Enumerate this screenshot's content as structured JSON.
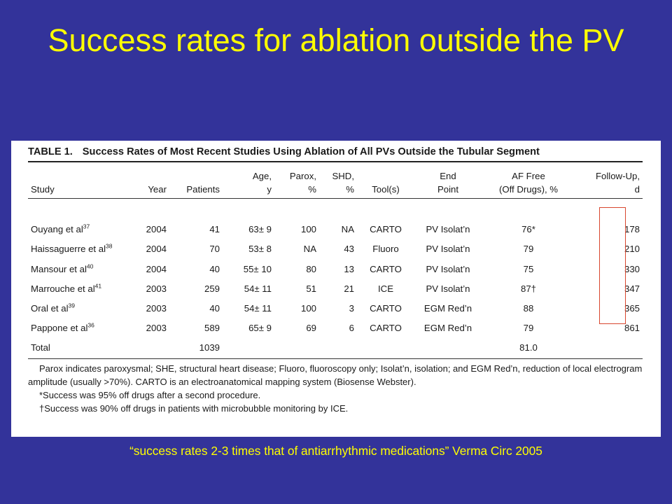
{
  "slide": {
    "title": "Success rates for ablation outside the PV",
    "caption": "“success rates 2-3 times that of antiarrhythmic medications” Verma Circ 2005",
    "colors": {
      "background": "#33339a",
      "title_text": "#ffff00",
      "highlight_box": "#d8462e"
    }
  },
  "table": {
    "label": "TABLE 1.",
    "title": "Success Rates of Most Recent Studies Using Ablation of All PVs Outside the Tubular Segment",
    "headers": {
      "study": [
        "Study"
      ],
      "year": [
        "Year"
      ],
      "patients": [
        "Patients"
      ],
      "age": [
        "Age,",
        "y"
      ],
      "parox": [
        "Parox,",
        "%"
      ],
      "shd": [
        "SHD,",
        "%"
      ],
      "tools": [
        "Tool(s)"
      ],
      "endpoint": [
        "End",
        "Point"
      ],
      "af_free": [
        "AF Free",
        "(Off Drugs), %"
      ],
      "followup": [
        "Follow-Up,",
        "d"
      ]
    },
    "rows": [
      {
        "study": "Ouyang et al",
        "ref": "37",
        "year": "2004",
        "patients": "41",
        "age": "63± 9",
        "parox": "100",
        "shd": "NA",
        "tools": "CARTO",
        "endpoint": "PV Isolat’n",
        "af_free": "76*",
        "followup": "178"
      },
      {
        "study": "Haissaguerre et al",
        "ref": "38",
        "year": "2004",
        "patients": "70",
        "age": "53± 8",
        "parox": "NA",
        "shd": "43",
        "tools": "Fluoro",
        "endpoint": "PV Isolat’n",
        "af_free": "79",
        "followup": "210"
      },
      {
        "study": "Mansour et al",
        "ref": "40",
        "year": "2004",
        "patients": "40",
        "age": "55± 10",
        "parox": "80",
        "shd": "13",
        "tools": "CARTO",
        "endpoint": "PV Isolat’n",
        "af_free": "75",
        "followup": "330"
      },
      {
        "study": "Marrouche et al",
        "ref": "41",
        "year": "2003",
        "patients": "259",
        "age": "54± 11",
        "parox": "51",
        "shd": "21",
        "tools": "ICE",
        "endpoint": "PV Isolat’n",
        "af_free": "87†",
        "followup": "347"
      },
      {
        "study": "Oral et al",
        "ref": "39",
        "year": "2003",
        "patients": "40",
        "age": "54± 11",
        "parox": "100",
        "shd": "3",
        "tools": "CARTO",
        "endpoint": "EGM Red’n",
        "af_free": "88",
        "followup": "365"
      },
      {
        "study": "Pappone et al",
        "ref": "36",
        "year": "2003",
        "patients": "589",
        "age": "65± 9",
        "parox": "69",
        "shd": "6",
        "tools": "CARTO",
        "endpoint": "EGM Red’n",
        "af_free": "79",
        "followup": "861"
      }
    ],
    "total": {
      "label": "Total",
      "patients": "1039",
      "af_free": "81.0"
    },
    "footnotes": {
      "abbreviations": "Parox indicates paroxysmal; SHE, structural heart disease; Fluoro, fluoroscopy only; Isolat’n, isolation; and EGM Red’n, reduction of local electrogram amplitude (usually >70%). CARTO is an electroanatomical mapping system (Biosense Webster).",
      "note_star": "*Success was 95% off drugs after a second procedure.",
      "note_dagger": "†Success was 90% off drugs in patients with microbubble monitoring by ICE."
    }
  }
}
